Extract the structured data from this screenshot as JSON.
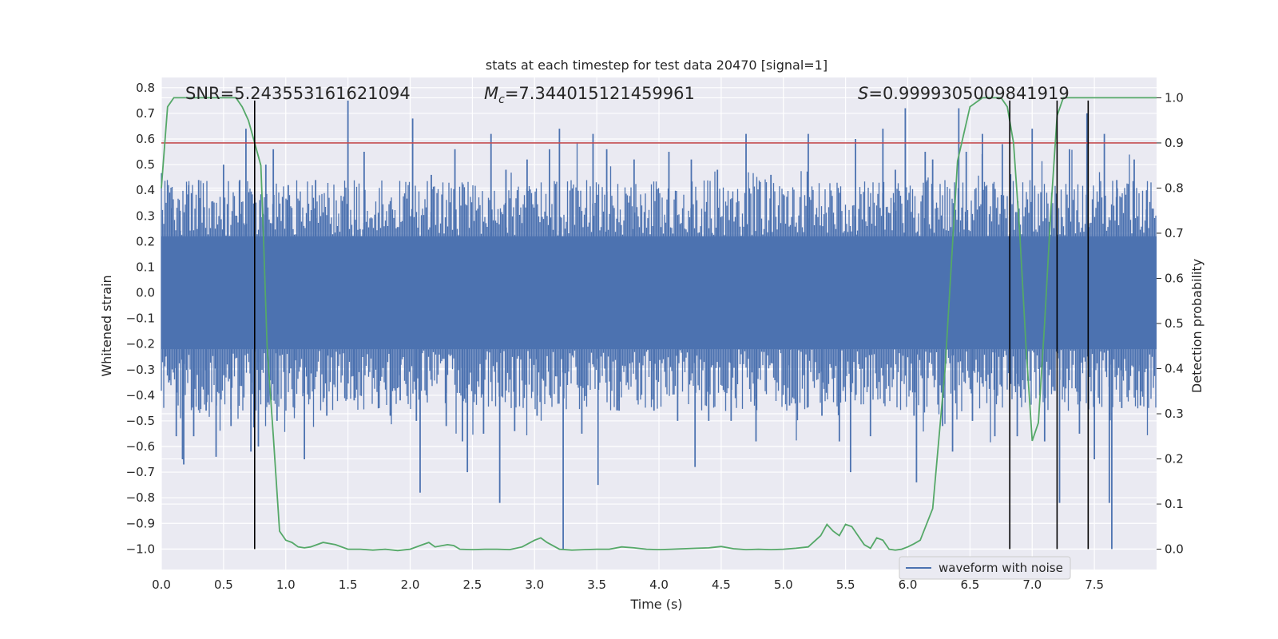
{
  "chart_data": {
    "type": "line",
    "title": "stats at each timestep for test data 20470 [signal=1]",
    "xlabel": "Time (s)",
    "ylabel_left": "Whitened strain",
    "ylabel_right": "Detection probability",
    "xlim": [
      0.0,
      8.0
    ],
    "ylim_left": [
      -1.08,
      0.84
    ],
    "ylim_right": [
      -0.045,
      1.045
    ],
    "x_ticks": [
      "0.0",
      "0.5",
      "1.0",
      "1.5",
      "2.0",
      "2.5",
      "3.0",
      "3.5",
      "4.0",
      "4.5",
      "5.0",
      "5.5",
      "6.0",
      "6.5",
      "7.0",
      "7.5"
    ],
    "x_tick_values": [
      0.0,
      0.5,
      1.0,
      1.5,
      2.0,
      2.5,
      3.0,
      3.5,
      4.0,
      4.5,
      5.0,
      5.5,
      6.0,
      6.5,
      7.0,
      7.5
    ],
    "y_left_ticks": [
      "0.8",
      "0.7",
      "0.6",
      "0.5",
      "0.4",
      "0.3",
      "0.2",
      "0.1",
      "0.0",
      "−0.1",
      "−0.2",
      "−0.3",
      "−0.4",
      "−0.5",
      "−0.6",
      "−0.7",
      "−0.8",
      "−0.9",
      "−1.0"
    ],
    "y_left_tick_values": [
      0.8,
      0.7,
      0.6,
      0.5,
      0.4,
      0.3,
      0.2,
      0.1,
      0.0,
      -0.1,
      -0.2,
      -0.3,
      -0.4,
      -0.5,
      -0.6,
      -0.7,
      -0.8,
      -0.9,
      -1.0
    ],
    "y_right_ticks": [
      "1.0",
      "0.9",
      "0.8",
      "0.7",
      "0.6",
      "0.5",
      "0.4",
      "0.3",
      "0.2",
      "0.1",
      "0.0"
    ],
    "y_right_tick_values": [
      1.0,
      0.9,
      0.8,
      0.7,
      0.6,
      0.5,
      0.4,
      0.3,
      0.2,
      0.1,
      0.0
    ],
    "annotations": {
      "snr": "SNR=5.243553161621094",
      "mc_symbol": "M",
      "mc_sub": "c",
      "mc_value": "=7.344015121459961",
      "s_symbol": "S",
      "s_value": "=0.9999305009841919"
    },
    "legend": {
      "label": "waveform with noise",
      "position": "lower right"
    },
    "threshold_line": {
      "value": 0.9,
      "axis": "right",
      "color": "#c44e52"
    },
    "vertical_lines_x": [
      0.75,
      6.82,
      7.2,
      7.45
    ],
    "vertical_lines_range_left": [
      -1.0,
      0.75
    ],
    "waveform": {
      "name": "waveform with noise",
      "color": "#4c72b0",
      "core_amplitude": 0.22,
      "spikes": [
        [
          0.03,
          -0.25
        ],
        [
          0.06,
          -0.35
        ],
        [
          0.08,
          0.33
        ],
        [
          0.12,
          -0.56
        ],
        [
          0.15,
          0.32
        ],
        [
          0.17,
          -0.65
        ],
        [
          0.18,
          -0.67
        ],
        [
          0.22,
          0.42
        ],
        [
          0.26,
          -0.56
        ],
        [
          0.3,
          0.44
        ],
        [
          0.36,
          -0.46
        ],
        [
          0.44,
          -0.64
        ],
        [
          0.5,
          0.5
        ],
        [
          0.56,
          -0.52
        ],
        [
          0.63,
          0.44
        ],
        [
          0.68,
          0.64
        ],
        [
          0.72,
          -0.62
        ],
        [
          0.78,
          -0.6
        ],
        [
          0.84,
          0.5
        ],
        [
          0.9,
          0.56
        ],
        [
          0.93,
          -0.5
        ],
        [
          1.02,
          0.42
        ],
        [
          1.07,
          -0.45
        ],
        [
          1.15,
          -0.65
        ],
        [
          1.24,
          0.44
        ],
        [
          1.33,
          -0.48
        ],
        [
          1.5,
          0.75
        ],
        [
          1.55,
          -0.42
        ],
        [
          1.63,
          0.55
        ],
        [
          1.75,
          -0.45
        ],
        [
          1.84,
          -0.48
        ],
        [
          1.92,
          -0.42
        ],
        [
          2.02,
          0.68
        ],
        [
          2.05,
          -0.5
        ],
        [
          2.08,
          -0.78
        ],
        [
          2.17,
          0.46
        ],
        [
          2.29,
          -0.52
        ],
        [
          2.36,
          0.56
        ],
        [
          2.42,
          -0.58
        ],
        [
          2.46,
          -0.7
        ],
        [
          2.59,
          -0.55
        ],
        [
          2.65,
          0.62
        ],
        [
          2.72,
          -0.82
        ],
        [
          2.77,
          0.48
        ],
        [
          2.84,
          -0.54
        ],
        [
          2.94,
          0.52
        ],
        [
          3.02,
          -0.48
        ],
        [
          3.12,
          0.56
        ],
        [
          3.2,
          0.64
        ],
        [
          3.23,
          -1.0
        ],
        [
          3.38,
          -0.55
        ],
        [
          3.47,
          0.62
        ],
        [
          3.51,
          -0.75
        ],
        [
          3.58,
          0.56
        ],
        [
          3.68,
          -0.46
        ],
        [
          3.8,
          0.52
        ],
        [
          3.96,
          -0.46
        ],
        [
          4.08,
          0.55
        ],
        [
          4.15,
          -0.5
        ],
        [
          4.26,
          0.52
        ],
        [
          4.29,
          -0.68
        ],
        [
          4.4,
          -0.5
        ],
        [
          4.47,
          0.48
        ],
        [
          4.58,
          -0.5
        ],
        [
          4.7,
          0.62
        ],
        [
          4.78,
          -0.58
        ],
        [
          4.9,
          0.46
        ],
        [
          5.05,
          -0.44
        ],
        [
          5.2,
          0.62
        ],
        [
          5.31,
          -0.48
        ],
        [
          5.45,
          -0.58
        ],
        [
          5.54,
          -0.7
        ],
        [
          5.58,
          0.6
        ],
        [
          5.7,
          -0.56
        ],
        [
          5.8,
          0.64
        ],
        [
          5.9,
          0.48
        ],
        [
          5.98,
          0.72
        ],
        [
          6.05,
          -0.48
        ],
        [
          6.07,
          -0.74
        ],
        [
          6.14,
          0.55
        ],
        [
          6.2,
          0.52
        ],
        [
          6.28,
          -0.52
        ],
        [
          6.36,
          -0.62
        ],
        [
          6.41,
          0.72
        ],
        [
          6.47,
          0.55
        ],
        [
          6.52,
          -0.5
        ],
        [
          6.6,
          0.62
        ],
        [
          6.7,
          -0.56
        ],
        [
          6.76,
          0.58
        ],
        [
          6.88,
          -0.56
        ],
        [
          7.0,
          0.64
        ],
        [
          7.1,
          -0.58
        ],
        [
          7.22,
          -0.82
        ],
        [
          7.3,
          0.56
        ],
        [
          7.38,
          -0.55
        ],
        [
          7.44,
          0.7
        ],
        [
          7.5,
          -0.65
        ],
        [
          7.58,
          0.62
        ],
        [
          7.62,
          -0.82
        ],
        [
          7.64,
          -1.0
        ],
        [
          7.68,
          0.44
        ],
        [
          7.72,
          -0.45
        ],
        [
          7.82,
          0.52
        ],
        [
          7.87,
          -0.44
        ],
        [
          7.92,
          0.4
        ]
      ]
    },
    "series": [
      {
        "name": "Detection probability",
        "axis": "right",
        "color": "#55a868",
        "x": [
          0.0,
          0.05,
          0.1,
          0.2,
          0.3,
          0.4,
          0.5,
          0.6,
          0.65,
          0.7,
          0.75,
          0.8,
          0.82,
          0.85,
          0.9,
          0.95,
          1.0,
          1.05,
          1.1,
          1.15,
          1.2,
          1.3,
          1.4,
          1.5,
          1.6,
          1.7,
          1.8,
          1.9,
          2.0,
          2.1,
          2.15,
          2.2,
          2.3,
          2.35,
          2.4,
          2.5,
          2.6,
          2.7,
          2.8,
          2.9,
          3.0,
          3.05,
          3.1,
          3.2,
          3.3,
          3.4,
          3.5,
          3.6,
          3.7,
          3.8,
          3.9,
          4.0,
          4.1,
          4.2,
          4.3,
          4.4,
          4.5,
          4.6,
          4.7,
          4.8,
          4.9,
          5.0,
          5.1,
          5.2,
          5.3,
          5.35,
          5.4,
          5.45,
          5.5,
          5.55,
          5.6,
          5.65,
          5.7,
          5.75,
          5.8,
          5.85,
          5.9,
          5.95,
          6.0,
          6.05,
          6.1,
          6.2,
          6.3,
          6.4,
          6.5,
          6.6,
          6.65,
          6.7,
          6.75,
          6.8,
          6.85,
          6.9,
          6.95,
          7.0,
          7.05,
          7.1,
          7.15,
          7.2,
          7.25,
          7.3,
          7.33,
          7.37,
          7.4,
          7.45,
          7.5,
          7.55,
          7.6,
          7.7,
          7.8,
          7.9,
          8.0
        ],
        "y": [
          0.8,
          0.98,
          1.0,
          1.0,
          1.0,
          1.0,
          1.0,
          1.0,
          0.98,
          0.95,
          0.9,
          0.85,
          0.7,
          0.45,
          0.25,
          0.04,
          0.02,
          0.015,
          0.005,
          0.003,
          0.005,
          0.015,
          0.01,
          0.0,
          0.0,
          -0.002,
          0.0,
          -0.003,
          0.0,
          0.01,
          0.015,
          0.005,
          0.01,
          0.008,
          0.0,
          -0.001,
          0.0,
          0.0,
          -0.001,
          0.005,
          0.02,
          0.025,
          0.015,
          0.0,
          -0.002,
          -0.001,
          0.0,
          0.0,
          0.005,
          0.003,
          0.0,
          -0.001,
          0.0,
          0.001,
          0.002,
          0.003,
          0.006,
          0.001,
          -0.001,
          0.0,
          -0.001,
          0.0,
          0.002,
          0.005,
          0.03,
          0.055,
          0.04,
          0.03,
          0.055,
          0.05,
          0.03,
          0.01,
          0.002,
          0.025,
          0.02,
          0.0,
          -0.002,
          0.0,
          0.005,
          0.012,
          0.02,
          0.09,
          0.4,
          0.86,
          0.98,
          1.0,
          1.0,
          1.0,
          1.0,
          0.98,
          0.9,
          0.7,
          0.45,
          0.24,
          0.28,
          0.5,
          0.75,
          0.96,
          1.0,
          1.0,
          1.0,
          1.0,
          1.0,
          1.0,
          1.0,
          1.0,
          1.0,
          1.0,
          1.0,
          1.0,
          1.0
        ]
      }
    ],
    "grid": true
  }
}
